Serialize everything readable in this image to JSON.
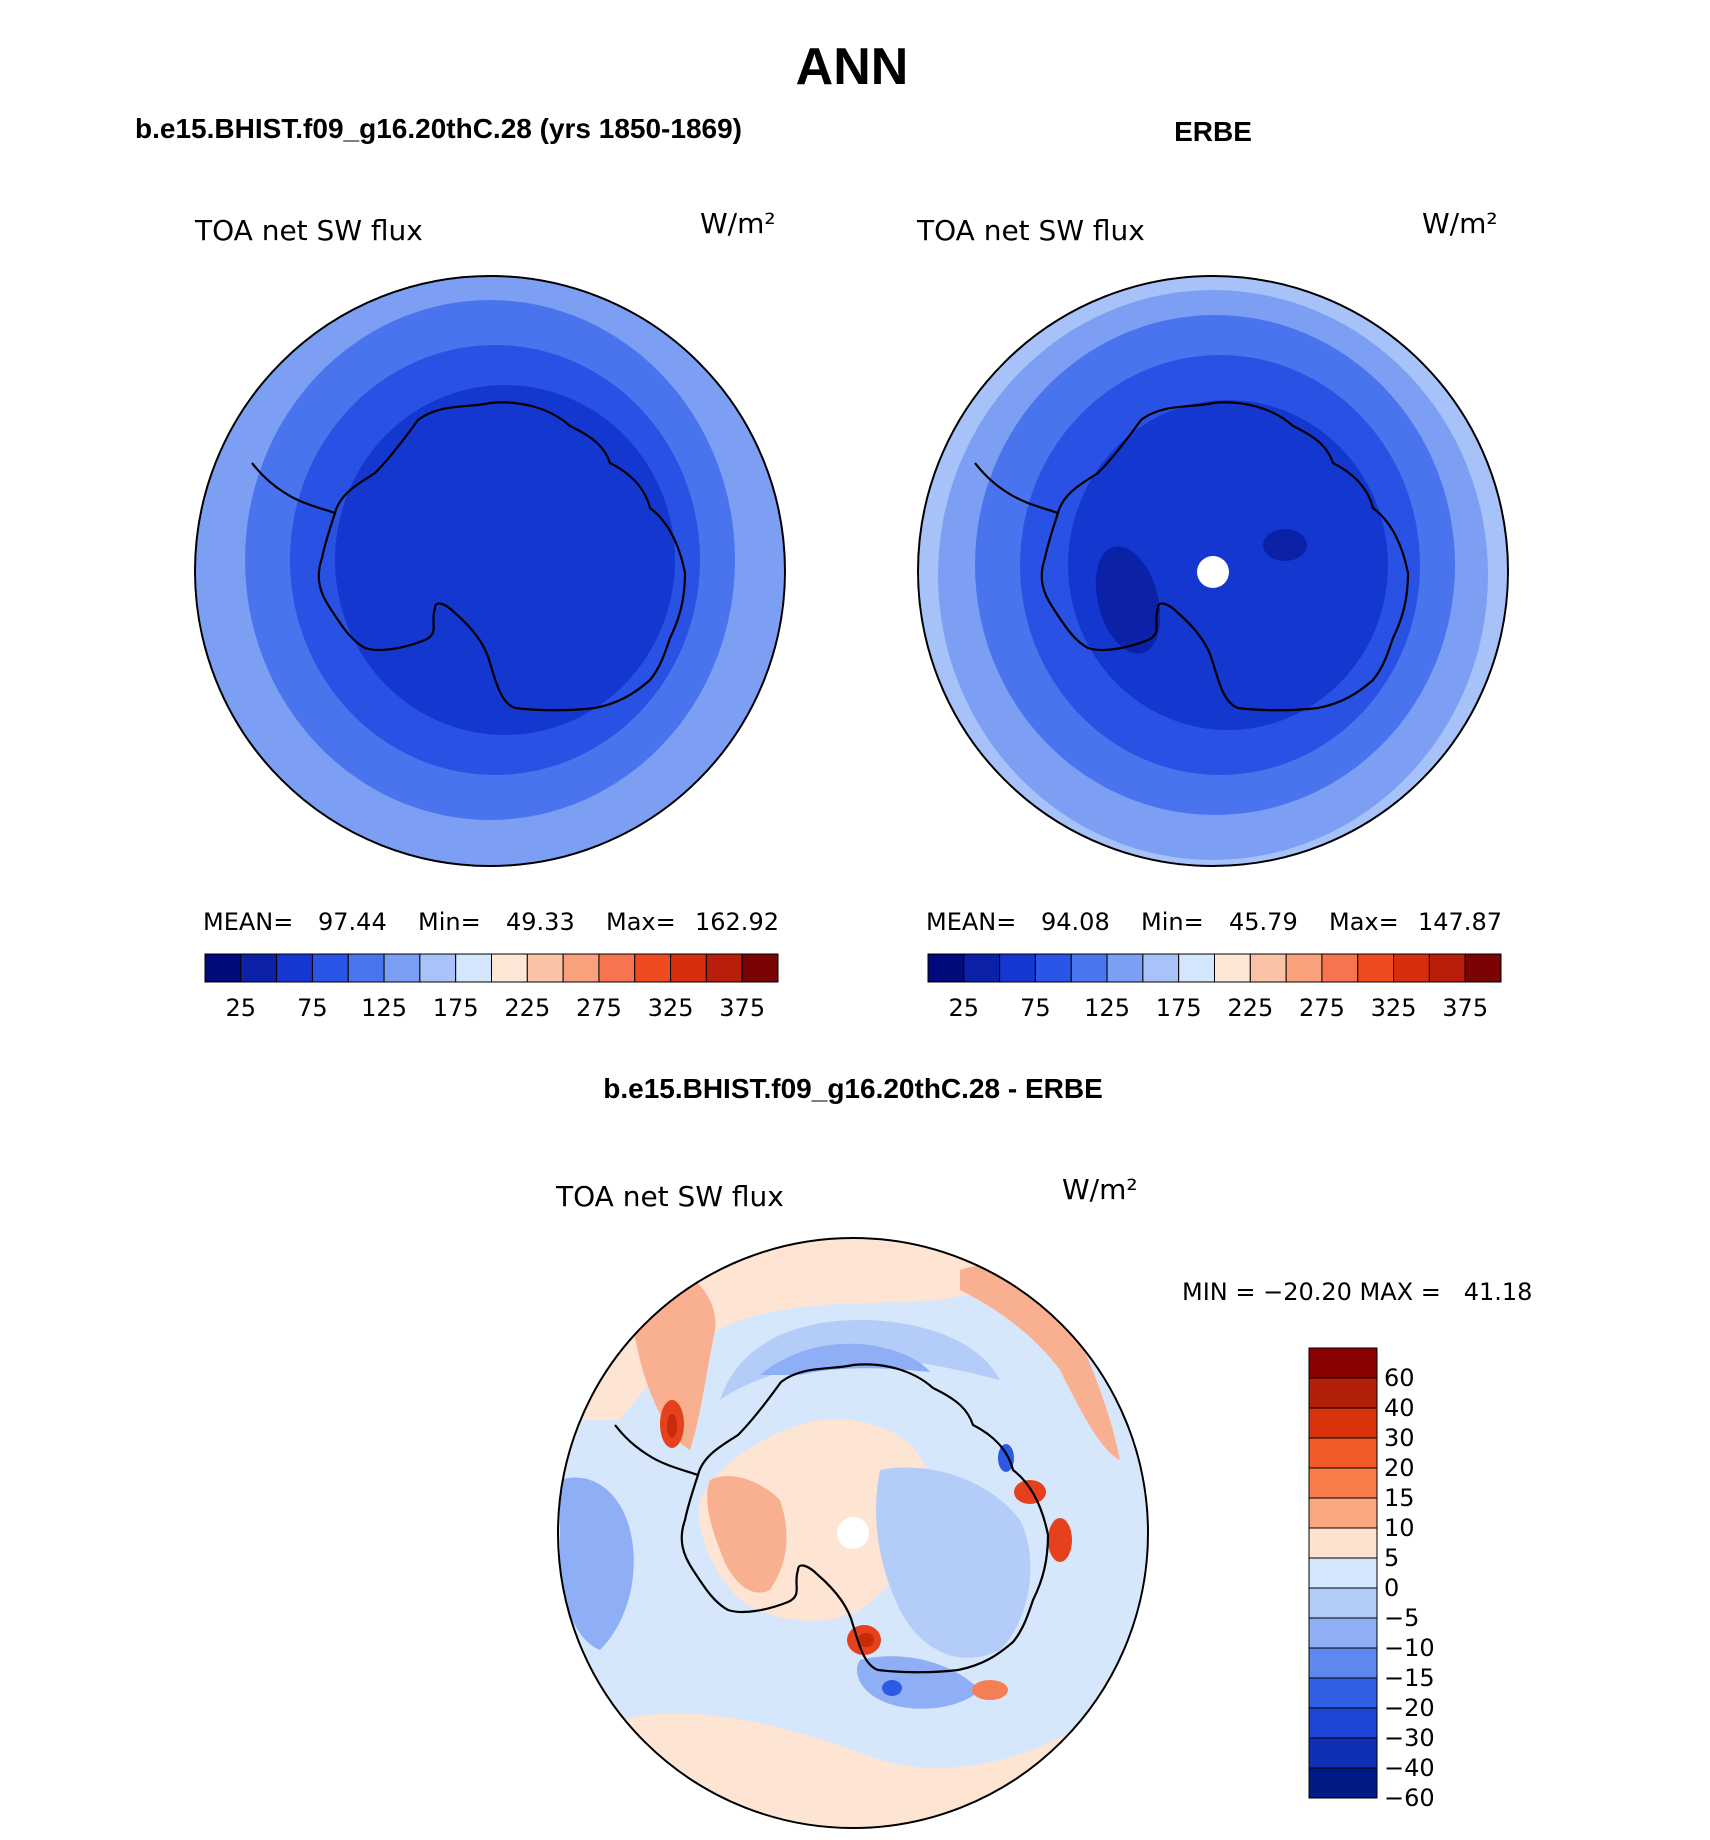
{
  "figure": {
    "main_title": "ANN",
    "units": "W/m²",
    "variable": "TOA net SW flux"
  },
  "panels": {
    "model": {
      "title": "b.e15.BHIST.f09_g16.20thC.28 (yrs 1850-1869)",
      "variable": "TOA net SW flux",
      "units": "W/m²",
      "stats": {
        "mean_label": "MEAN=",
        "mean": "97.44",
        "min_label": "Min=",
        "min": "49.33",
        "max_label": "Max=",
        "max": "162.92"
      }
    },
    "obs": {
      "title": "ERBE",
      "variable": "TOA net SW flux",
      "units": "W/m²",
      "stats": {
        "mean_label": "MEAN=",
        "mean": "94.08",
        "min_label": "Min=",
        "min": "45.79",
        "max_label": "Max=",
        "max": "147.87"
      }
    },
    "diff": {
      "title": "b.e15.BHIST.f09_g16.20thC.28 - ERBE",
      "variable": "TOA net SW flux",
      "units": "W/m²",
      "minmax_text": "MIN = −20.20 MAX =   41.18"
    }
  },
  "field_colorbar": {
    "colors": [
      "#000a7a",
      "#0b22a8",
      "#1737d2",
      "#2a55e6",
      "#4a75ef",
      "#7b9ff5",
      "#a9c3fa",
      "#d4e6fc",
      "#fde6d6",
      "#fbc3a6",
      "#f9a07d",
      "#f67550",
      "#ef4a20",
      "#d82d0c",
      "#b81e0a",
      "#7a0404"
    ],
    "tick_labels": [
      "25",
      "75",
      "125",
      "175",
      "225",
      "275",
      "325",
      "375"
    ]
  },
  "diff_colorbar": {
    "colors": [
      "#8b0000",
      "#b3200a",
      "#d9320c",
      "#f05a28",
      "#f77c4a",
      "#f9a681",
      "#fde2cf",
      "#d3e6fb",
      "#b2ccf8",
      "#8eaef5",
      "#5f88ee",
      "#3160e6",
      "#1d45d6",
      "#0f2fb5",
      "#001a86"
    ],
    "tick_labels": [
      "60",
      "40",
      "30",
      "20",
      "15",
      "10",
      "5",
      "0",
      "−5",
      "−10",
      "−15",
      "−20",
      "−30",
      "−40",
      "−60"
    ]
  },
  "map_colors": {
    "model_fill": [
      "#7c9ff4",
      "#4a74ee",
      "#2952e4",
      "#1437d0"
    ],
    "obs_fill": [
      "#a6c2f9",
      "#7c9ff4",
      "#4a74ee",
      "#2952e4",
      "#1437d0",
      "#0b22a8"
    ],
    "diff_background": "#d7e7fb",
    "diff_warm": [
      "#fde4d3",
      "#f9b091",
      "#f57f54",
      "#e4411c",
      "#c82a0c"
    ],
    "diff_cool": [
      "#b3cdf8",
      "#8eaef5",
      "#5b86ec",
      "#2c5ae3"
    ],
    "coastline": "#000000",
    "missing": "#ffffff"
  }
}
